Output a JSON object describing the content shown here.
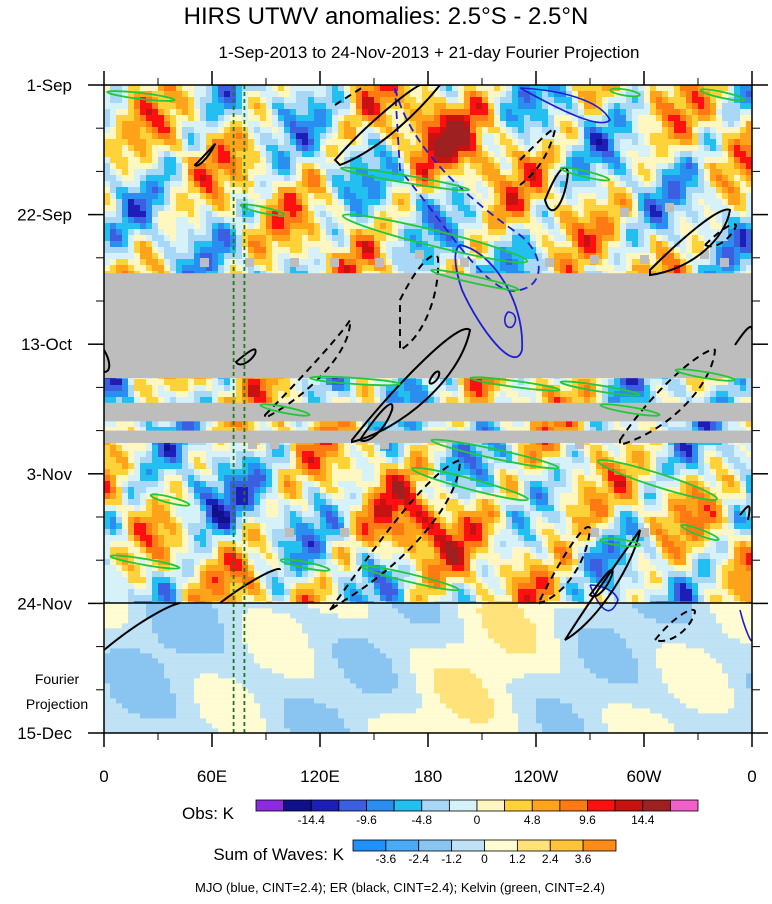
{
  "title": "HIRS UTWV anomalies: 2.5°S - 2.5°N",
  "subtitle": "1-Sep-2013 to 24-Nov-2013 + 21-day Fourier Projection",
  "footer_note": "MJO (blue, CINT=2.4); ER (black, CINT=2.4); Kelvin (green, CINT=2.4)",
  "colors": {
    "gray_band": "#bdbdbd",
    "mjo": "#1f1fd0",
    "er": "#000000",
    "kelvin": "#22c83a",
    "reference_line": "#1f7a1f"
  },
  "chart_data": {
    "type": "heatmap",
    "x_ticks": [
      "0",
      "60E",
      "120E",
      "180",
      "120W",
      "60W",
      "0"
    ],
    "x_tick_values": [
      0,
      60,
      120,
      180,
      240,
      300,
      360
    ],
    "x_range": [
      0,
      360
    ],
    "y_ticks": [
      "1-Sep",
      "22-Sep",
      "13-Oct",
      "3-Nov",
      "24-Nov",
      "15-Dec"
    ],
    "y_tick_values": [
      0,
      21,
      42,
      63,
      84,
      105
    ],
    "y_range_days": [
      0,
      105
    ],
    "observation_end_day": 84,
    "fourier_label": [
      "Fourier",
      "Projection"
    ],
    "reference_longitudes": [
      72,
      78
    ],
    "missing_data_bands_days": [
      [
        30.5,
        47.5
      ],
      [
        51.5,
        54.5
      ],
      [
        56,
        58
      ]
    ],
    "colorbars": [
      {
        "label": "Obs: K",
        "levels": [
          "-14.4",
          "-9.6",
          "-4.8",
          "0",
          "4.8",
          "9.6",
          "14.4"
        ],
        "colors": [
          "#8a2be2",
          "#10108c",
          "#1d1db8",
          "#3b5fe0",
          "#2a8ef0",
          "#22bff0",
          "#a8d8f5",
          "#d6f1f8",
          "#fff6c0",
          "#ffd23a",
          "#ffa41a",
          "#ff7a12",
          "#ff1010",
          "#c81212",
          "#9e2020",
          "#f060c8"
        ]
      },
      {
        "label": "Sum of Waves: K",
        "levels": [
          "-3.6",
          "-2.4",
          "-1.2",
          "0",
          "1.2",
          "2.4",
          "3.6"
        ],
        "colors": [
          "#1e90ff",
          "#4aaaf5",
          "#8ac4f0",
          "#bfe2f5",
          "#fffbd2",
          "#ffe27a",
          "#ffc43a",
          "#ff8c1a"
        ]
      }
    ]
  }
}
